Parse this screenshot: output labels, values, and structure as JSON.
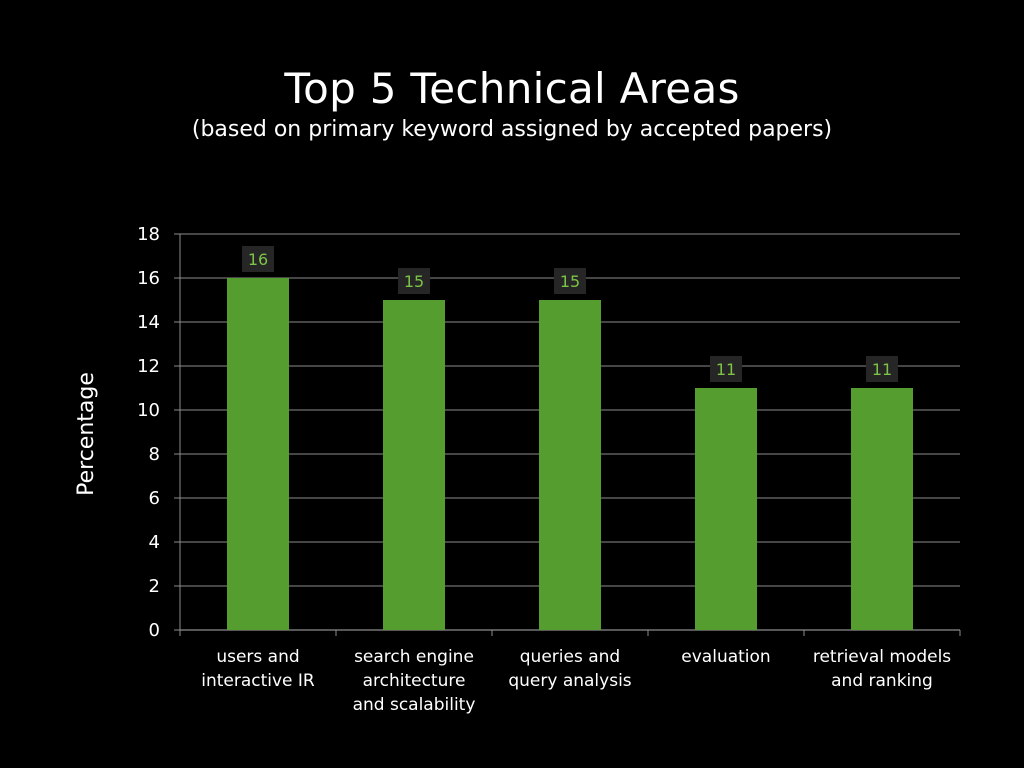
{
  "chart_data": {
    "type": "bar",
    "title": "Top 5 Technical Areas",
    "subtitle": "(based on primary keyword assigned by accepted papers)",
    "ylabel": "Percentage",
    "xlabel": "",
    "categories": [
      [
        "users and",
        "interactive IR"
      ],
      [
        "search engine",
        "architecture",
        "and scalability"
      ],
      [
        "queries and",
        "query analysis"
      ],
      [
        "evaluation"
      ],
      [
        "retrieval models",
        "and ranking"
      ]
    ],
    "values": [
      16,
      15,
      15,
      11,
      11
    ],
    "ylim": [
      0,
      18
    ],
    "yticks": [
      0,
      2,
      4,
      6,
      8,
      10,
      12,
      14,
      16,
      18
    ],
    "grid": true,
    "legend": "none",
    "bar_color": "#559d2f",
    "label_bg": "#262626",
    "label_color": "#7cc347"
  }
}
